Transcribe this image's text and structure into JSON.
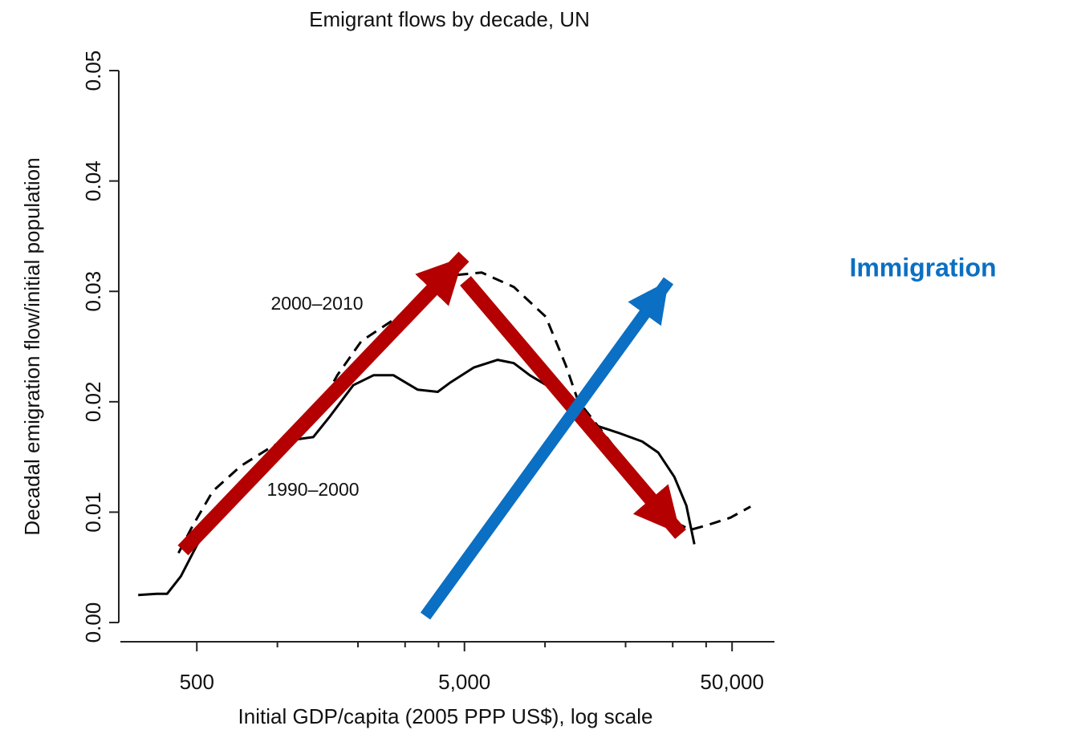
{
  "chart_data": {
    "type": "line",
    "title": "Emigrant flows by decade, UN",
    "x_label": "Initial GDP/capita (2005 PPP US$), log scale",
    "y_label": "Decadal emigration flow/initial population",
    "x_log": true,
    "xlim": [
      259,
      72000
    ],
    "xticks": [
      500,
      {
        "value": 5000,
        "label": "5,000"
      },
      {
        "value": 50000,
        "label": "50,000"
      }
    ],
    "xminor_ticks": [
      1000,
      2000,
      3000,
      4000,
      10000,
      20000,
      30000,
      40000
    ],
    "ylim": [
      -0.00174,
      0.052
    ],
    "yticks": [
      {
        "value": 0,
        "label": "0.00"
      },
      0.01,
      0.02,
      0.03,
      0.04,
      0.05
    ],
    "annotations": [
      {
        "text": "2000–2010"
      },
      {
        "text": "1990–2000"
      },
      {
        "text": "Immigration"
      }
    ],
    "series": [
      {
        "name": "1990–2000",
        "color": "#000000",
        "style": "solid",
        "x": [
          302,
          354,
          387,
          436,
          500,
          574,
          682,
          839,
          1000,
          1186,
          1361,
          1563,
          1921,
          2286,
          2715,
          3340,
          3971,
          4403,
          5413,
          6652,
          7644,
          8776,
          10790,
          12400,
          15240,
          18750,
          23070,
          26480,
          30410,
          33730,
          36150
        ],
        "values": [
          0.0025,
          0.0026,
          0.0026,
          0.0042,
          0.007,
          0.0092,
          0.0113,
          0.0135,
          0.0157,
          0.0166,
          0.0168,
          0.0186,
          0.0215,
          0.0224,
          0.0224,
          0.0211,
          0.0209,
          0.0217,
          0.0231,
          0.0238,
          0.0235,
          0.0224,
          0.0211,
          0.0197,
          0.0179,
          0.0172,
          0.0164,
          0.0154,
          0.0132,
          0.0106,
          0.0071
        ]
      },
      {
        "name": "2000–2010",
        "color": "#000000",
        "style": "dashed",
        "x": [
          427,
          483,
          574,
          731,
          963,
          1270,
          1674,
          2060,
          2449,
          3118,
          3971,
          4720,
          5800,
          7644,
          10070,
          11960,
          13280,
          17490,
          23070,
          28380,
          34900,
          40090,
          49300,
          58600
        ],
        "values": [
          0.0063,
          0.0088,
          0.0119,
          0.0142,
          0.016,
          0.0172,
          0.0224,
          0.0255,
          0.0267,
          0.0284,
          0.0308,
          0.0315,
          0.0317,
          0.0304,
          0.0277,
          0.0233,
          0.0201,
          0.0164,
          0.0121,
          0.0095,
          0.0084,
          0.0088,
          0.0095,
          0.0105
        ]
      }
    ]
  }
}
